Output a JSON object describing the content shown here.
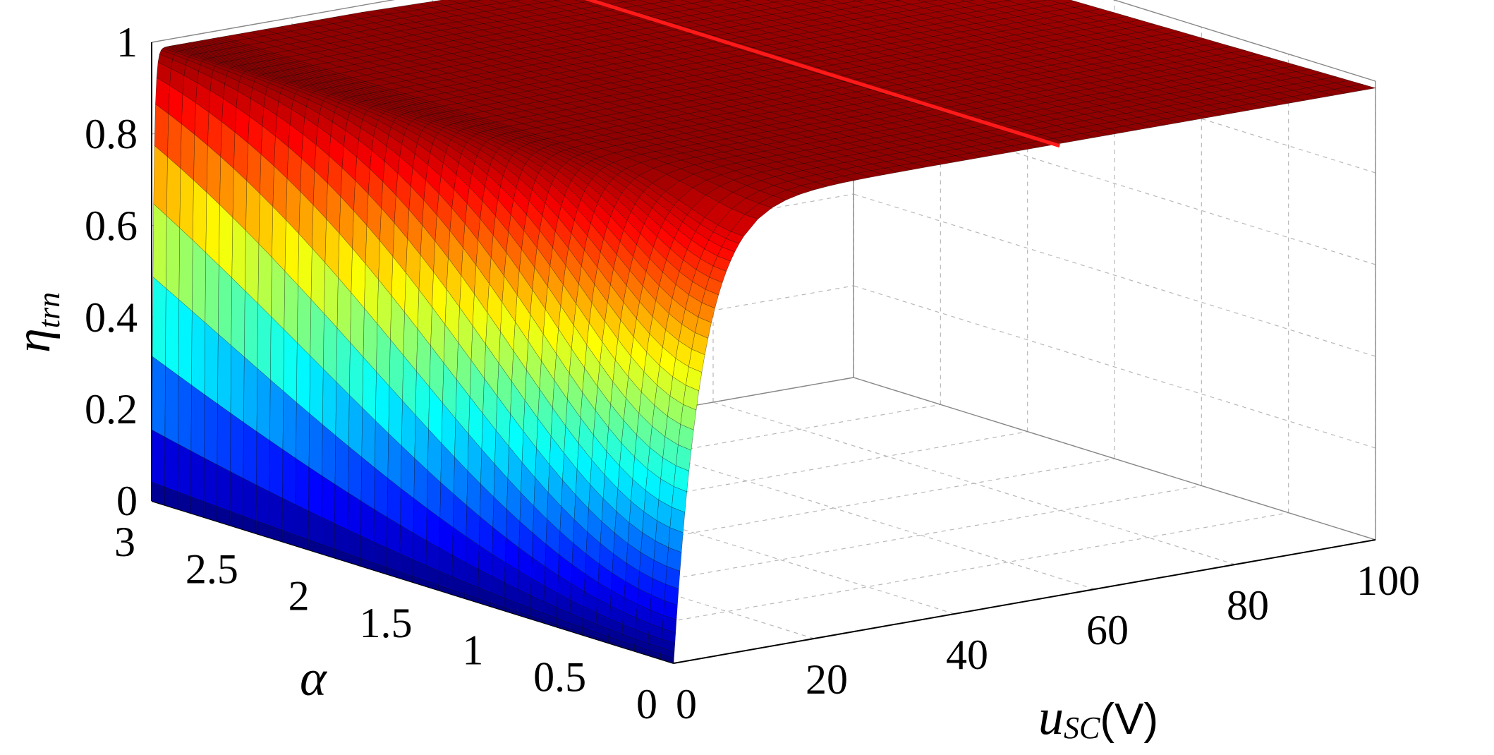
{
  "chart_data": {
    "type": "surface",
    "x": {
      "name": "u",
      "subscript": "SC",
      "unit": "(V)",
      "range": [
        0,
        100
      ],
      "ticks": [
        "0",
        "20",
        "40",
        "60",
        "80",
        "100"
      ]
    },
    "y": {
      "name": "α",
      "range": [
        0,
        3
      ],
      "ticks": [
        "0",
        "0.5",
        "1",
        "1.5",
        "2",
        "2.5",
        "3"
      ]
    },
    "z": {
      "name": "η",
      "subscript": "trn",
      "range": [
        0,
        1
      ],
      "ticks": [
        "0",
        "0.2",
        "0.4",
        "0.6",
        "0.8",
        "1"
      ]
    },
    "grid": true,
    "colormap": "jet",
    "surface_samples": [
      {
        "alpha": 0.0,
        "u_sc": [
          0,
          2,
          5,
          10,
          20,
          40,
          60,
          80,
          100
        ],
        "eta": [
          0.0,
          0.2,
          0.62,
          0.82,
          0.92,
          0.97,
          0.98,
          0.99,
          0.99
        ]
      },
      {
        "alpha": 1.5,
        "u_sc": [
          0,
          2,
          5,
          10,
          20,
          40,
          60,
          80,
          100
        ],
        "eta": [
          0.0,
          0.45,
          0.78,
          0.88,
          0.94,
          0.97,
          0.98,
          0.98,
          0.98
        ]
      },
      {
        "alpha": 3.0,
        "u_sc": [
          0,
          2,
          5,
          10,
          20,
          40,
          60,
          80,
          100
        ],
        "eta": [
          0.0,
          0.9,
          0.95,
          0.96,
          0.97,
          0.97,
          0.97,
          0.97,
          0.97
        ]
      }
    ],
    "highlight_line": {
      "color": "#ff1a1a",
      "u_sc": 55,
      "alpha_range": [
        0,
        3
      ],
      "eta": 0.98
    }
  }
}
